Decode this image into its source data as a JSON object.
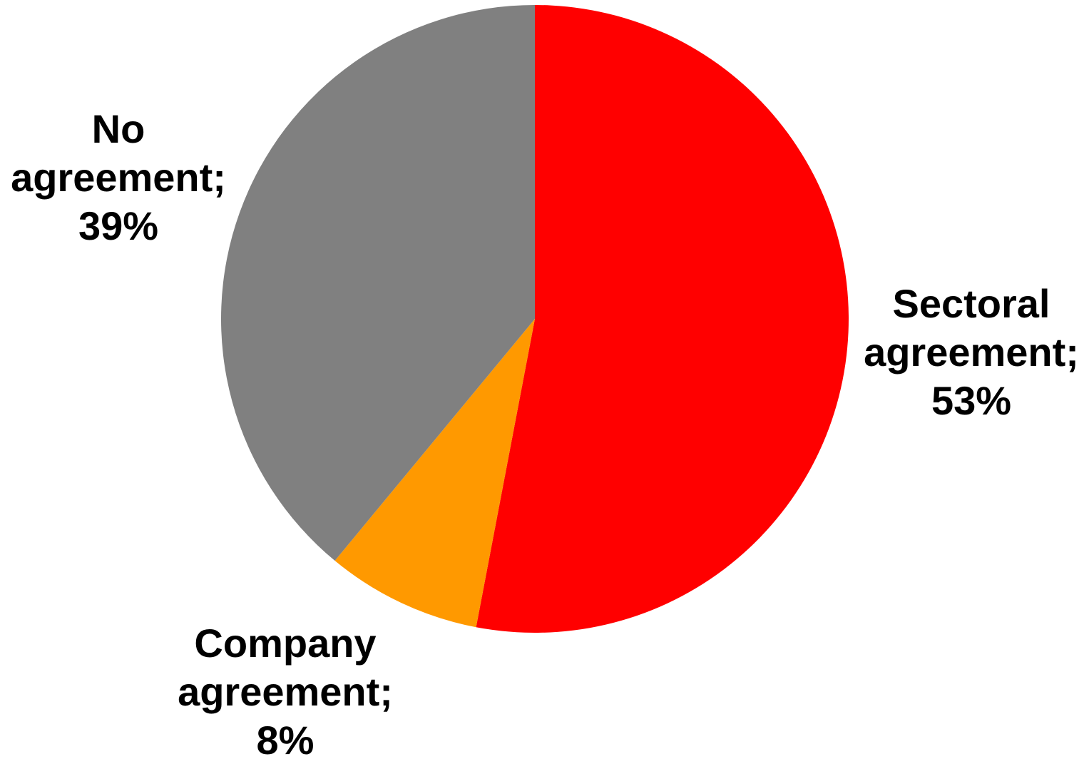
{
  "chart_data": {
    "type": "pie",
    "start_angle_deg": 0,
    "direction": "clockwise",
    "slices": [
      {
        "key": "sectoral",
        "label_lines": [
          "Sectoral",
          "agreement;",
          "53%"
        ],
        "value": 53,
        "color": "#ff0000"
      },
      {
        "key": "company",
        "label_lines": [
          "Company",
          "agreement;",
          "8%"
        ],
        "value": 8,
        "color": "#ff9900"
      },
      {
        "key": "no",
        "label_lines": [
          "No",
          "agreement;",
          "39%"
        ],
        "value": 39,
        "color": "#808080"
      }
    ],
    "legend": "none"
  }
}
